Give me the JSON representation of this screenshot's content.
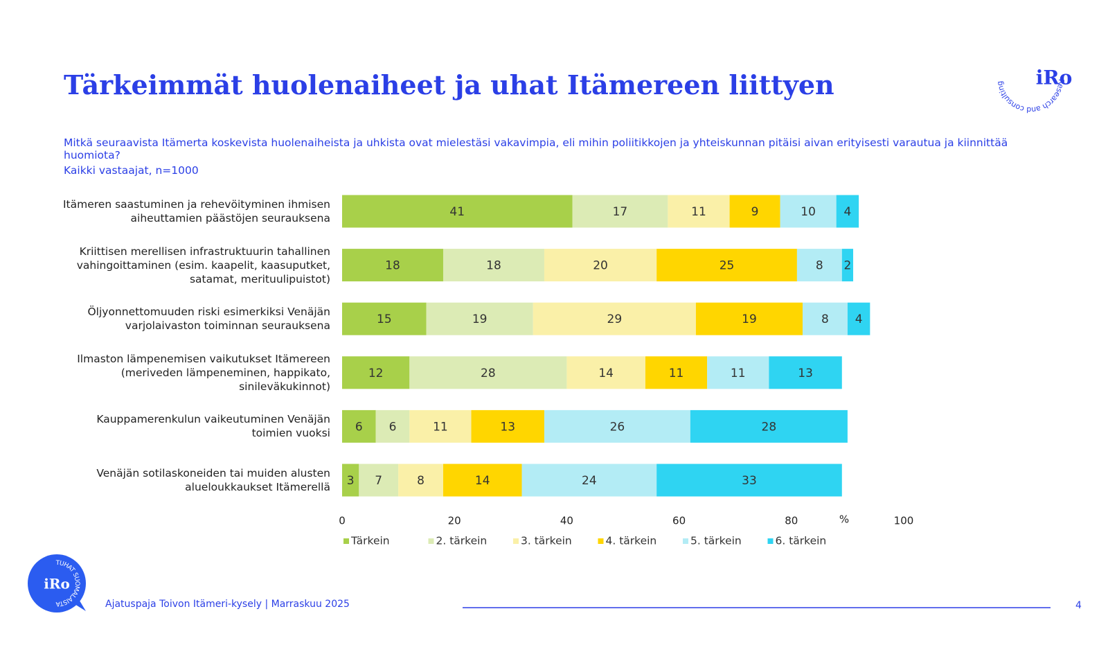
{
  "header": {
    "title": "Tärkeimmät huolenaiheet ja uhat Itämereen liittyen",
    "logo": "iRo",
    "logo_ring": "Research and consulting"
  },
  "chart_data": {
    "type": "stacked-bar-horizontal",
    "subtitle": "Mitkä seuraavista Itämerta koskevista huolenaiheista ja uhkista ovat mielestäsi vakavimpia, eli mihin poliitikkojen ja yhteiskunnan pitäisi aivan erityisesti varautua ja kiinnittää huomiota?",
    "note": "Kaikki vastaajat, n=1000",
    "categories": [
      "Itämeren saastuminen ja rehevöityminen ihmisen aiheuttamien päästöjen seurauksena",
      "Kriittisen merellisen infrastruktuurin tahallinen vahingoittaminen (esim. kaapelit, kaasuputket, satamat, merituulipuistot)",
      "Öljyonnettomuuden riski esimerkiksi Venäjän varjolaivaston toiminnan seurauksena",
      "Ilmaston lämpenemisen vaikutukset Itämereen (meriveden lämpeneminen, happikato, sinileväkukinnot)",
      "Kauppamerenkulun vaikeutuminen Venäjän toimien vuoksi",
      "Venäjän sotilaskoneiden tai muiden alusten alueloukkaukset Itämerellä"
    ],
    "series": [
      {
        "name": "Tärkein",
        "color": "#a8d04a",
        "values": [
          41,
          18,
          15,
          12,
          6,
          3
        ]
      },
      {
        "name": "2. tärkein",
        "color": "#dcebb5",
        "values": [
          17,
          18,
          19,
          28,
          6,
          7
        ]
      },
      {
        "name": "3. tärkein",
        "color": "#faf0a8",
        "values": [
          11,
          20,
          29,
          14,
          11,
          8
        ]
      },
      {
        "name": "4. tärkein",
        "color": "#ffd600",
        "values": [
          9,
          25,
          19,
          11,
          13,
          14
        ]
      },
      {
        "name": "5. tärkein",
        "color": "#b3ecf5",
        "values": [
          10,
          8,
          8,
          11,
          26,
          24
        ]
      },
      {
        "name": "6. tärkein",
        "color": "#2fd4f2",
        "values": [
          4,
          2,
          4,
          13,
          28,
          33
        ]
      }
    ],
    "xlim": [
      0,
      100
    ],
    "xticks": [
      0,
      20,
      40,
      60,
      80,
      100
    ],
    "x_unit": "%",
    "legend": "bottom"
  },
  "footer": {
    "badge": "iRo",
    "badge_ring": "TUHAT SUOMALAISTA",
    "source": "Ajatuspaja Toivon Itämeri-kysely | Marraskuu 2025",
    "page": "4"
  }
}
